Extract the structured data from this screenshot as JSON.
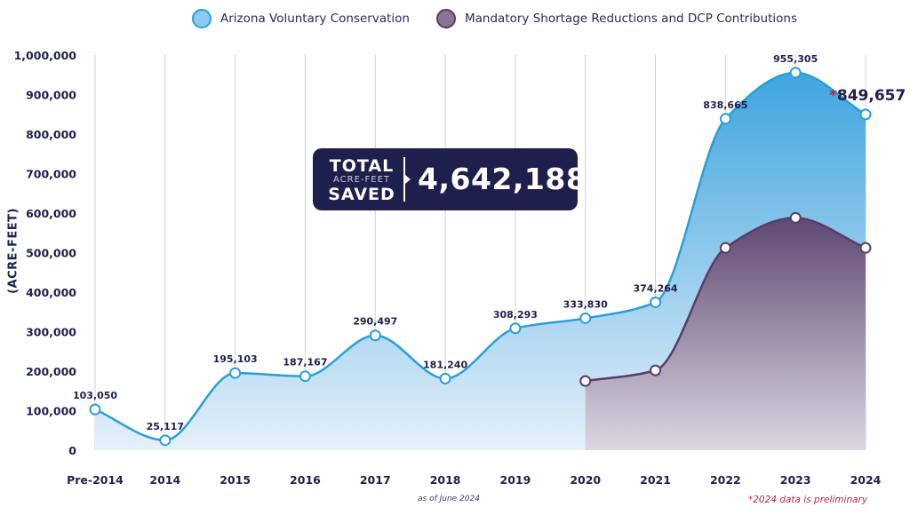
{
  "legend": {
    "voluntary": "Arizona Voluntary Conservation",
    "mandatory": "Mandatory Shortage Reductions and DCP Contributions"
  },
  "colors": {
    "voluntary_line": "#2a9fd8",
    "voluntary_fill_top": "#3fa5df",
    "voluntary_fill_bottom": "#e3eef9",
    "mandatory_line": "#5a3b68",
    "mandatory_fill_top": "#5e4872",
    "mandatory_fill_bottom": "#d8d3de",
    "navy": "#1f1f4d",
    "red": "#c0283c",
    "grid": "#cdd1d8"
  },
  "total_box": {
    "label_top": "TOTAL",
    "label_mid": "ACRE-FEET",
    "label_bottom": "SAVED",
    "value": "4,642,188"
  },
  "notes": {
    "as_of": "as of June 2024",
    "preliminary": "*2024 data is preliminary",
    "star": "*",
    "final_label": "849,657"
  },
  "chart_data": {
    "type": "area",
    "title": "",
    "xlabel": "",
    "ylabel": "(ACRE-FEET)",
    "ylim": [
      0,
      1000000
    ],
    "yticks": [
      0,
      100000,
      200000,
      300000,
      400000,
      500000,
      600000,
      700000,
      800000,
      900000,
      1000000
    ],
    "ytick_labels": [
      "0",
      "100,000",
      "200,000",
      "300,000",
      "400,000",
      "500,000",
      "600,000",
      "700,000",
      "800,000",
      "900,000",
      "1,000,000"
    ],
    "categories": [
      "Pre-2014",
      "2014",
      "2015",
      "2016",
      "2017",
      "2018",
      "2019",
      "2020",
      "2021",
      "2022",
      "2023",
      "2024"
    ],
    "series": [
      {
        "name": "Arizona Voluntary Conservation",
        "values": [
          103050,
          25117,
          195103,
          187167,
          290497,
          181240,
          308293,
          333830,
          374264,
          838665,
          955305,
          849657
        ],
        "labels": [
          "103,050",
          "25,117",
          "195,103",
          "187,167",
          "290,497",
          "181,240",
          "308,293",
          "333,830",
          "374,264",
          "838,665",
          "955,305",
          ""
        ]
      },
      {
        "name": "Mandatory Shortage Reductions and DCP Contributions",
        "values": [
          null,
          null,
          null,
          null,
          null,
          null,
          null,
          175000,
          202000,
          512000,
          588000,
          512000
        ]
      }
    ],
    "grid": true,
    "legend_position": "top-center"
  }
}
